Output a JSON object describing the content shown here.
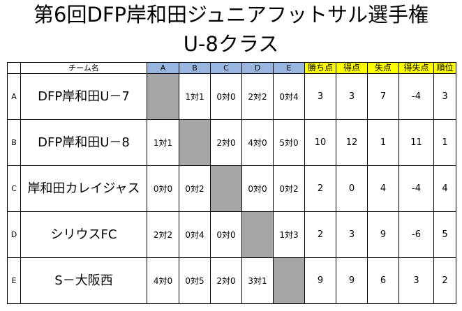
{
  "title": {
    "line1": "第6回DFP岸和田ジュニアフットサル選手権",
    "line2": "U-8クラス"
  },
  "table": {
    "header": {
      "blank": "",
      "team": "チーム名",
      "opponents": [
        "A",
        "B",
        "C",
        "D",
        "E"
      ],
      "stats": [
        "勝ち点",
        "得点",
        "失点",
        "得失点",
        "順位"
      ]
    },
    "rows": [
      {
        "id": "A",
        "team": "DFP岸和田U－7",
        "results": [
          "",
          "1対1",
          "0対0",
          "2対2",
          "0対4"
        ],
        "stats": [
          "3",
          "3",
          "7",
          "-4",
          "3"
        ]
      },
      {
        "id": "B",
        "team": "DFP岸和田U－8",
        "results": [
          "1対1",
          "",
          "2対0",
          "4対0",
          "5対0"
        ],
        "stats": [
          "10",
          "12",
          "1",
          "11",
          "1"
        ]
      },
      {
        "id": "C",
        "team": "岸和田カレイジャス",
        "results": [
          "0対0",
          "0対2",
          "",
          "0対0",
          "0対2"
        ],
        "stats": [
          "2",
          "0",
          "4",
          "-4",
          "4"
        ]
      },
      {
        "id": "D",
        "team": "シリウスFC",
        "results": [
          "2対2",
          "0対4",
          "0対0",
          "",
          "1対3"
        ],
        "stats": [
          "2",
          "3",
          "9",
          "-6",
          "5"
        ]
      },
      {
        "id": "E",
        "team": "S－大阪西",
        "results": [
          "4対0",
          "0対5",
          "2対0",
          "3対1",
          ""
        ],
        "stats": [
          "9",
          "9",
          "6",
          "3",
          "2"
        ]
      }
    ]
  },
  "colors": {
    "opponent_header_bg": "#99b6e0",
    "stats_header_bg": "#ffff00",
    "self_match_bg": "#a6a6a6"
  }
}
